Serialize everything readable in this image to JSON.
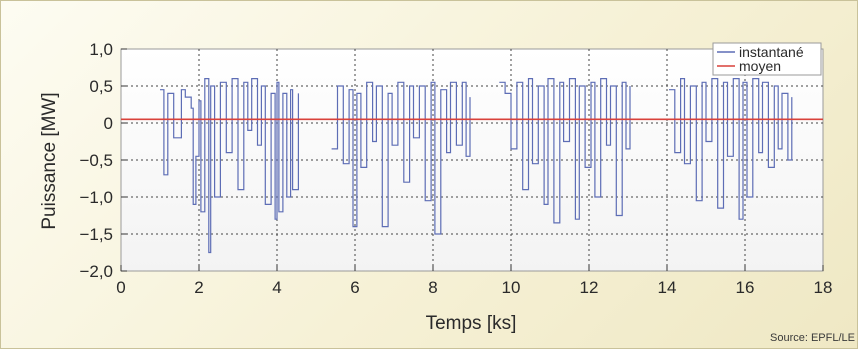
{
  "chart_data": {
    "type": "line",
    "xlabel": "Temps [ks]",
    "ylabel": "Puissance [MW]",
    "xlim": [
      0,
      18
    ],
    "ylim": [
      -2.0,
      1.0
    ],
    "xticks": [
      0,
      2,
      4,
      6,
      8,
      10,
      12,
      14,
      16,
      18
    ],
    "xtick_labels": [
      "0",
      "2",
      "4",
      "6",
      "8",
      "10",
      "12",
      "14",
      "16",
      "18"
    ],
    "yticks": [
      1.0,
      0.5,
      0,
      -0.5,
      -1.0,
      -1.5,
      -2.0
    ],
    "ytick_labels": [
      "1,0",
      "0,5",
      "0",
      "−0,5",
      "−1,0",
      "−1,5",
      "−2,0"
    ],
    "grid": true,
    "legend_position": "top-right",
    "series": [
      {
        "name": "instantané",
        "color": "#5d6db5",
        "x": [
          1.0,
          1.1,
          1.2,
          1.35,
          1.55,
          1.65,
          1.8,
          1.85,
          1.92,
          2.0,
          2.05,
          2.15,
          2.25,
          2.3,
          2.4,
          2.55,
          2.7,
          2.85,
          3.0,
          3.15,
          3.25,
          3.35,
          3.5,
          3.6,
          3.7,
          3.85,
          3.95,
          4.0,
          4.05,
          4.15,
          4.25,
          4.35,
          4.4,
          4.55,
          5.4,
          5.55,
          5.7,
          5.85,
          5.95,
          6.05,
          6.15,
          6.3,
          6.45,
          6.55,
          6.7,
          6.85,
          6.95,
          7.1,
          7.25,
          7.4,
          7.5,
          7.65,
          7.8,
          7.95,
          8.05,
          8.2,
          8.35,
          8.45,
          8.6,
          8.75,
          8.85,
          8.95,
          9.7,
          9.85,
          10.0,
          10.15,
          10.3,
          10.45,
          10.55,
          10.7,
          10.85,
          10.95,
          11.1,
          11.25,
          11.35,
          11.5,
          11.65,
          11.75,
          11.9,
          12.05,
          12.15,
          12.3,
          12.45,
          12.55,
          12.7,
          12.85,
          12.95,
          13.05,
          14.05,
          14.2,
          14.35,
          14.45,
          14.6,
          14.75,
          14.9,
          15.0,
          15.15,
          15.3,
          15.45,
          15.55,
          15.7,
          15.85,
          15.95,
          16.05,
          16.2,
          16.35,
          16.45,
          16.6,
          16.75,
          16.85,
          16.95,
          17.1,
          17.2
        ],
        "y": [
          0.45,
          -0.7,
          0.4,
          -0.2,
          0.45,
          0.35,
          0.2,
          -1.1,
          -0.45,
          0.3,
          -1.2,
          0.6,
          -1.75,
          0.5,
          -1.0,
          0.55,
          -0.4,
          0.6,
          -0.9,
          0.55,
          -0.1,
          0.6,
          -0.3,
          0.5,
          -1.1,
          0.4,
          -1.3,
          0.55,
          -1.2,
          0.4,
          -1.0,
          0.45,
          -0.9,
          0.4,
          -0.35,
          0.5,
          -0.55,
          0.45,
          -1.4,
          0.4,
          -0.6,
          0.55,
          -0.25,
          0.5,
          -1.4,
          0.4,
          -0.3,
          0.55,
          -0.8,
          0.5,
          -0.2,
          0.5,
          -1.05,
          0.55,
          -1.5,
          0.45,
          -0.4,
          0.55,
          -0.3,
          0.55,
          -0.45,
          0.35,
          0.55,
          0.4,
          -0.35,
          0.55,
          -0.9,
          0.6,
          -0.55,
          0.5,
          -1.1,
          0.6,
          -1.35,
          0.55,
          -0.25,
          0.6,
          -1.3,
          0.5,
          -0.6,
          0.55,
          -1.0,
          0.6,
          -0.3,
          0.5,
          -1.25,
          0.55,
          -0.35,
          0.5,
          0.45,
          -0.4,
          0.6,
          -0.55,
          0.5,
          -1.05,
          0.55,
          -0.25,
          0.6,
          -1.15,
          0.55,
          -0.45,
          0.6,
          -1.3,
          0.55,
          -1.0,
          0.6,
          -0.4,
          0.55,
          -0.6,
          0.5,
          -0.35,
          0.4,
          -0.5,
          0.35
        ]
      },
      {
        "name": "moyen",
        "color": "#d9413a",
        "x": [
          0,
          18
        ],
        "y": [
          0.05,
          0.05
        ]
      }
    ],
    "annotations": [
      "Source: EPFL/LE"
    ]
  }
}
